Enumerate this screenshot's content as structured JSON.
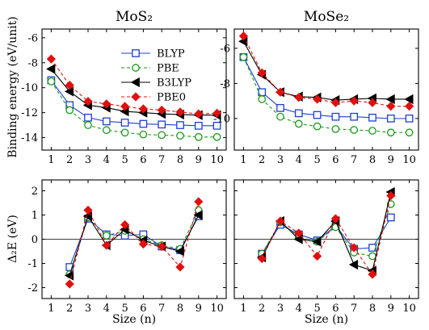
{
  "column_titles": {
    "left": "MoS₂",
    "right": "MoSe₂"
  },
  "legend": [
    "BLYP",
    "PBE",
    "B3LYP",
    "PBE0"
  ],
  "series_style": {
    "BLYP": {
      "color": "#1f3fd0",
      "dash": "solid",
      "marker": "open-square"
    },
    "PBE": {
      "color": "#1a9a1a",
      "dash": "dashed",
      "marker": "open-circle"
    },
    "B3LYP": {
      "color": "#000000",
      "dash": "solid",
      "marker": "filled-left-triangle"
    },
    "PBE0": {
      "color": "#e01010",
      "dash": "dashed",
      "marker": "filled-diamond"
    }
  },
  "chart_data": [
    {
      "id": "binding-mos2",
      "type": "line",
      "title": "MoS₂",
      "xlabel": "",
      "ylabel": "Binding energy (eV/unit)",
      "xlim": [
        0.5,
        10.5
      ],
      "ylim": [
        -15,
        -5.3
      ],
      "xticks": [
        1,
        2,
        3,
        4,
        5,
        6,
        7,
        8,
        9,
        10
      ],
      "yticks": [
        -14,
        -12,
        -10,
        -8,
        -6
      ],
      "x": [
        1,
        2,
        3,
        4,
        5,
        6,
        7,
        8,
        9,
        10
      ],
      "series": [
        {
          "name": "BLYP",
          "values": [
            -9.4,
            -11.4,
            -12.4,
            -12.7,
            -12.8,
            -12.9,
            -12.95,
            -13.0,
            -13.05,
            -13.05
          ]
        },
        {
          "name": "PBE",
          "values": [
            -9.5,
            -11.8,
            -13.0,
            -13.4,
            -13.6,
            -13.75,
            -13.8,
            -13.85,
            -13.95,
            -13.95
          ]
        },
        {
          "name": "B3LYP",
          "values": [
            -8.5,
            -10.3,
            -11.4,
            -11.6,
            -11.9,
            -12.0,
            -12.1,
            -12.15,
            -12.2,
            -12.2
          ]
        },
        {
          "name": "PBE0",
          "values": [
            -7.7,
            -9.8,
            -11.1,
            -11.3,
            -11.5,
            -11.7,
            -11.8,
            -11.95,
            -12.1,
            -12.05
          ]
        }
      ]
    },
    {
      "id": "binding-mose2",
      "type": "line",
      "title": "MoSe₂",
      "xlabel": "",
      "ylabel": "",
      "xlim": [
        0.5,
        10.5
      ],
      "ylim": [
        -11.8,
        -4.9
      ],
      "xticks": [
        1,
        2,
        3,
        4,
        5,
        6,
        7,
        8,
        9,
        10
      ],
      "yticks": [
        -10,
        -8,
        -6
      ],
      "x": [
        1,
        2,
        3,
        4,
        5,
        6,
        7,
        8,
        9,
        10
      ],
      "series": [
        {
          "name": "BLYP",
          "values": [
            -6.5,
            -8.5,
            -9.4,
            -9.7,
            -9.8,
            -9.9,
            -9.9,
            -9.95,
            -10.0,
            -10.0
          ]
        },
        {
          "name": "PBE",
          "values": [
            -6.5,
            -8.9,
            -9.9,
            -10.3,
            -10.45,
            -10.6,
            -10.65,
            -10.7,
            -10.8,
            -10.8
          ]
        },
        {
          "name": "B3LYP",
          "values": [
            -5.6,
            -7.5,
            -8.5,
            -8.75,
            -8.8,
            -8.95,
            -8.9,
            -8.85,
            -8.9,
            -8.9
          ]
        },
        {
          "name": "PBE0",
          "values": [
            -5.3,
            -7.4,
            -8.5,
            -8.8,
            -8.9,
            -9.1,
            -9.0,
            -9.1,
            -9.3,
            -9.3
          ]
        }
      ]
    },
    {
      "id": "delta-mos2",
      "type": "line",
      "title": "",
      "xlabel": "Size (n)",
      "ylabel": "Δ₂E (eV)",
      "xlim": [
        0.5,
        10.5
      ],
      "ylim": [
        -2.45,
        2.45
      ],
      "xticks": [
        1,
        2,
        3,
        4,
        5,
        6,
        7,
        8,
        9,
        10
      ],
      "yticks": [
        -2,
        -1,
        0,
        1,
        2
      ],
      "zero_line": true,
      "series": [
        {
          "name": "BLYP",
          "x": [
            2,
            3,
            4,
            5,
            6,
            7,
            8,
            9
          ],
          "values": [
            -1.15,
            0.85,
            0.2,
            0.15,
            0.2,
            -0.3,
            -0.45,
            0.95
          ]
        },
        {
          "name": "PBE",
          "x": [
            2,
            3,
            4,
            5,
            6,
            7,
            8,
            9
          ],
          "values": [
            -1.45,
            0.9,
            0.15,
            0.35,
            0.0,
            -0.25,
            -0.4,
            1.2
          ]
        },
        {
          "name": "B3LYP",
          "x": [
            2,
            3,
            4,
            5,
            6,
            7,
            8,
            9
          ],
          "values": [
            -1.5,
            0.95,
            -0.25,
            0.4,
            -0.05,
            -0.3,
            -0.5,
            1.0
          ]
        },
        {
          "name": "PBE0",
          "x": [
            2,
            3,
            4,
            5,
            6,
            7,
            8,
            9
          ],
          "values": [
            -1.85,
            1.2,
            -0.25,
            0.6,
            -0.2,
            -0.3,
            -1.15,
            1.55
          ]
        }
      ]
    },
    {
      "id": "delta-mose2",
      "type": "line",
      "title": "",
      "xlabel": "Size (n)",
      "ylabel": "",
      "xlim": [
        0.5,
        10.5
      ],
      "ylim": [
        -2.45,
        2.45
      ],
      "xticks": [
        1,
        2,
        3,
        4,
        5,
        6,
        7,
        8,
        9,
        10
      ],
      "yticks": [
        -2,
        -1,
        0,
        1,
        2
      ],
      "zero_line": true,
      "series": [
        {
          "name": "BLYP",
          "x": [
            2,
            3,
            4,
            5,
            6,
            7,
            8,
            9
          ],
          "values": [
            -0.6,
            0.6,
            0.2,
            -0.05,
            0.55,
            -0.4,
            -0.35,
            0.9
          ]
        },
        {
          "name": "PBE",
          "x": [
            2,
            3,
            4,
            5,
            6,
            7,
            8,
            9
          ],
          "values": [
            -0.6,
            0.7,
            0.1,
            -0.1,
            0.5,
            -0.55,
            -0.7,
            1.45
          ]
        },
        {
          "name": "B3LYP",
          "x": [
            2,
            3,
            4,
            5,
            6,
            7,
            8,
            9
          ],
          "values": [
            -0.75,
            0.75,
            0.0,
            -0.1,
            0.75,
            -1.05,
            -1.3,
            1.95
          ]
        },
        {
          "name": "PBE0",
          "x": [
            2,
            3,
            4,
            5,
            6,
            7,
            8,
            9
          ],
          "values": [
            -0.8,
            0.75,
            0.25,
            -0.7,
            0.85,
            -0.35,
            -1.45,
            1.8
          ]
        }
      ]
    }
  ]
}
